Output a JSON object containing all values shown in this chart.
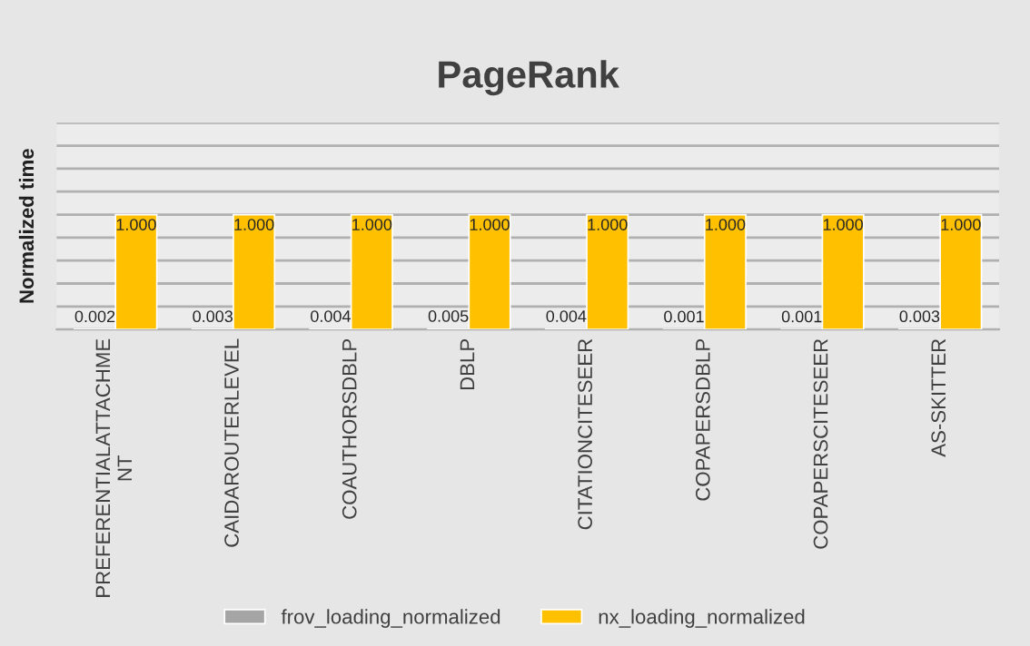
{
  "chart_data": {
    "type": "bar",
    "title": "PageRank",
    "ylabel": "Normalized time",
    "categories": [
      "PREFERENTIALATTACHMENT",
      "CAIDAROUTERLEVEL",
      "COAUTHORSDBLP",
      "DBLP",
      "CITATIONCITESEER",
      "COPAPERSDBLP",
      "COPAPERSCITESEER",
      "AS-SKITTER"
    ],
    "series": [
      {
        "name": "frov_loading_normalized",
        "color": "#a5a5a5",
        "values": [
          0.002,
          0.003,
          0.004,
          0.005,
          0.004,
          0.001,
          0.001,
          0.003
        ],
        "value_labels": [
          "0.002",
          "0.003",
          "0.004",
          "0.005",
          "0.004",
          "0.001",
          "0.001",
          "0.003"
        ]
      },
      {
        "name": "nx_loading_normalized",
        "color": "#ffc000",
        "values": [
          1.0,
          1.0,
          1.0,
          1.0,
          1.0,
          1.0,
          1.0,
          1.0
        ],
        "value_labels": [
          "1.000",
          "1.000",
          "1.000",
          "1.000",
          "1.000",
          "1.000",
          "1.000",
          "1.000"
        ]
      }
    ],
    "ylim": [
      0,
      1.8
    ],
    "yticks": [
      {
        "value": 0,
        "label": null
      },
      {
        "value": 0.2,
        "label": null
      },
      {
        "value": 0.4,
        "label": null
      },
      {
        "value": 0.6,
        "label": null
      },
      {
        "value": 0.8,
        "label": null
      },
      {
        "value": 1.0,
        "label": null
      },
      {
        "value": 1.2,
        "label": null
      },
      {
        "value": 1.4,
        "label": null
      },
      {
        "value": 1.6,
        "label": null
      },
      {
        "value": 1.8,
        "label": null
      }
    ],
    "grid": "y",
    "legend": "bottom"
  }
}
